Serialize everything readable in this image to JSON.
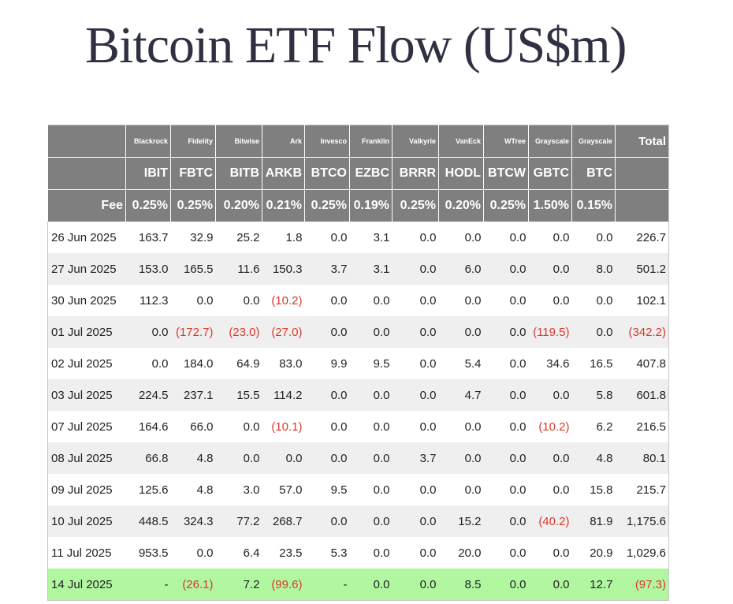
{
  "title": "Bitcoin ETF Flow (US$m)",
  "colors": {
    "header_bg": "#7f7f7f",
    "stripe": "#efefef",
    "highlight": "#b1f7a0",
    "negative": "#d93a2b"
  },
  "chart_data": {
    "type": "table",
    "title": "Bitcoin ETF Flow (US$m)",
    "fee_label": "Fee",
    "total_label": "Total",
    "funds": [
      {
        "issuer": "Blackrock",
        "ticker": "IBIT",
        "fee": "0.25%"
      },
      {
        "issuer": "Fidelity",
        "ticker": "FBTC",
        "fee": "0.25%"
      },
      {
        "issuer": "Bitwise",
        "ticker": "BITB",
        "fee": "0.20%"
      },
      {
        "issuer": "Ark",
        "ticker": "ARKB",
        "fee": "0.21%"
      },
      {
        "issuer": "Invesco",
        "ticker": "BTCO",
        "fee": "0.25%"
      },
      {
        "issuer": "Franklin",
        "ticker": "EZBC",
        "fee": "0.19%"
      },
      {
        "issuer": "Valkyrie",
        "ticker": "BRRR",
        "fee": "0.25%"
      },
      {
        "issuer": "VanEck",
        "ticker": "HODL",
        "fee": "0.20%"
      },
      {
        "issuer": "WTree",
        "ticker": "BTCW",
        "fee": "0.25%"
      },
      {
        "issuer": "Grayscale",
        "ticker": "GBTC",
        "fee": "1.50%"
      },
      {
        "issuer": "Grayscale",
        "ticker": "BTC",
        "fee": "0.15%"
      }
    ],
    "rows": [
      {
        "date": "26 Jun 2025",
        "values": [
          "163.7",
          "32.9",
          "25.2",
          "1.8",
          "0.0",
          "3.1",
          "0.0",
          "0.0",
          "0.0",
          "0.0",
          "0.0"
        ],
        "total": "226.7"
      },
      {
        "date": "27 Jun 2025",
        "values": [
          "153.0",
          "165.5",
          "11.6",
          "150.3",
          "3.7",
          "3.1",
          "0.0",
          "6.0",
          "0.0",
          "0.0",
          "8.0"
        ],
        "total": "501.2"
      },
      {
        "date": "30 Jun 2025",
        "values": [
          "112.3",
          "0.0",
          "0.0",
          "(10.2)",
          "0.0",
          "0.0",
          "0.0",
          "0.0",
          "0.0",
          "0.0",
          "0.0"
        ],
        "total": "102.1"
      },
      {
        "date": "01 Jul 2025",
        "values": [
          "0.0",
          "(172.7)",
          "(23.0)",
          "(27.0)",
          "0.0",
          "0.0",
          "0.0",
          "0.0",
          "0.0",
          "(119.5)",
          "0.0"
        ],
        "total": "(342.2)"
      },
      {
        "date": "02 Jul 2025",
        "values": [
          "0.0",
          "184.0",
          "64.9",
          "83.0",
          "9.9",
          "9.5",
          "0.0",
          "5.4",
          "0.0",
          "34.6",
          "16.5"
        ],
        "total": "407.8"
      },
      {
        "date": "03 Jul 2025",
        "values": [
          "224.5",
          "237.1",
          "15.5",
          "114.2",
          "0.0",
          "0.0",
          "0.0",
          "4.7",
          "0.0",
          "0.0",
          "5.8"
        ],
        "total": "601.8"
      },
      {
        "date": "07 Jul 2025",
        "values": [
          "164.6",
          "66.0",
          "0.0",
          "(10.1)",
          "0.0",
          "0.0",
          "0.0",
          "0.0",
          "0.0",
          "(10.2)",
          "6.2"
        ],
        "total": "216.5"
      },
      {
        "date": "08 Jul 2025",
        "values": [
          "66.8",
          "4.8",
          "0.0",
          "0.0",
          "0.0",
          "0.0",
          "3.7",
          "0.0",
          "0.0",
          "0.0",
          "4.8"
        ],
        "total": "80.1"
      },
      {
        "date": "09 Jul 2025",
        "values": [
          "125.6",
          "4.8",
          "3.0",
          "57.0",
          "9.5",
          "0.0",
          "0.0",
          "0.0",
          "0.0",
          "0.0",
          "15.8"
        ],
        "total": "215.7"
      },
      {
        "date": "10 Jul 2025",
        "values": [
          "448.5",
          "324.3",
          "77.2",
          "268.7",
          "0.0",
          "0.0",
          "0.0",
          "15.2",
          "0.0",
          "(40.2)",
          "81.9"
        ],
        "total": "1,175.6"
      },
      {
        "date": "11 Jul 2025",
        "values": [
          "953.5",
          "0.0",
          "6.4",
          "23.5",
          "5.3",
          "0.0",
          "0.0",
          "20.0",
          "0.0",
          "0.0",
          "20.9"
        ],
        "total": "1,029.6"
      },
      {
        "date": "14 Jul 2025",
        "values": [
          "-",
          "(26.1)",
          "7.2",
          "(99.6)",
          "-",
          "0.0",
          "0.0",
          "8.5",
          "0.0",
          "0.0",
          "12.7"
        ],
        "total": "(97.3)",
        "highlight": true
      }
    ]
  }
}
